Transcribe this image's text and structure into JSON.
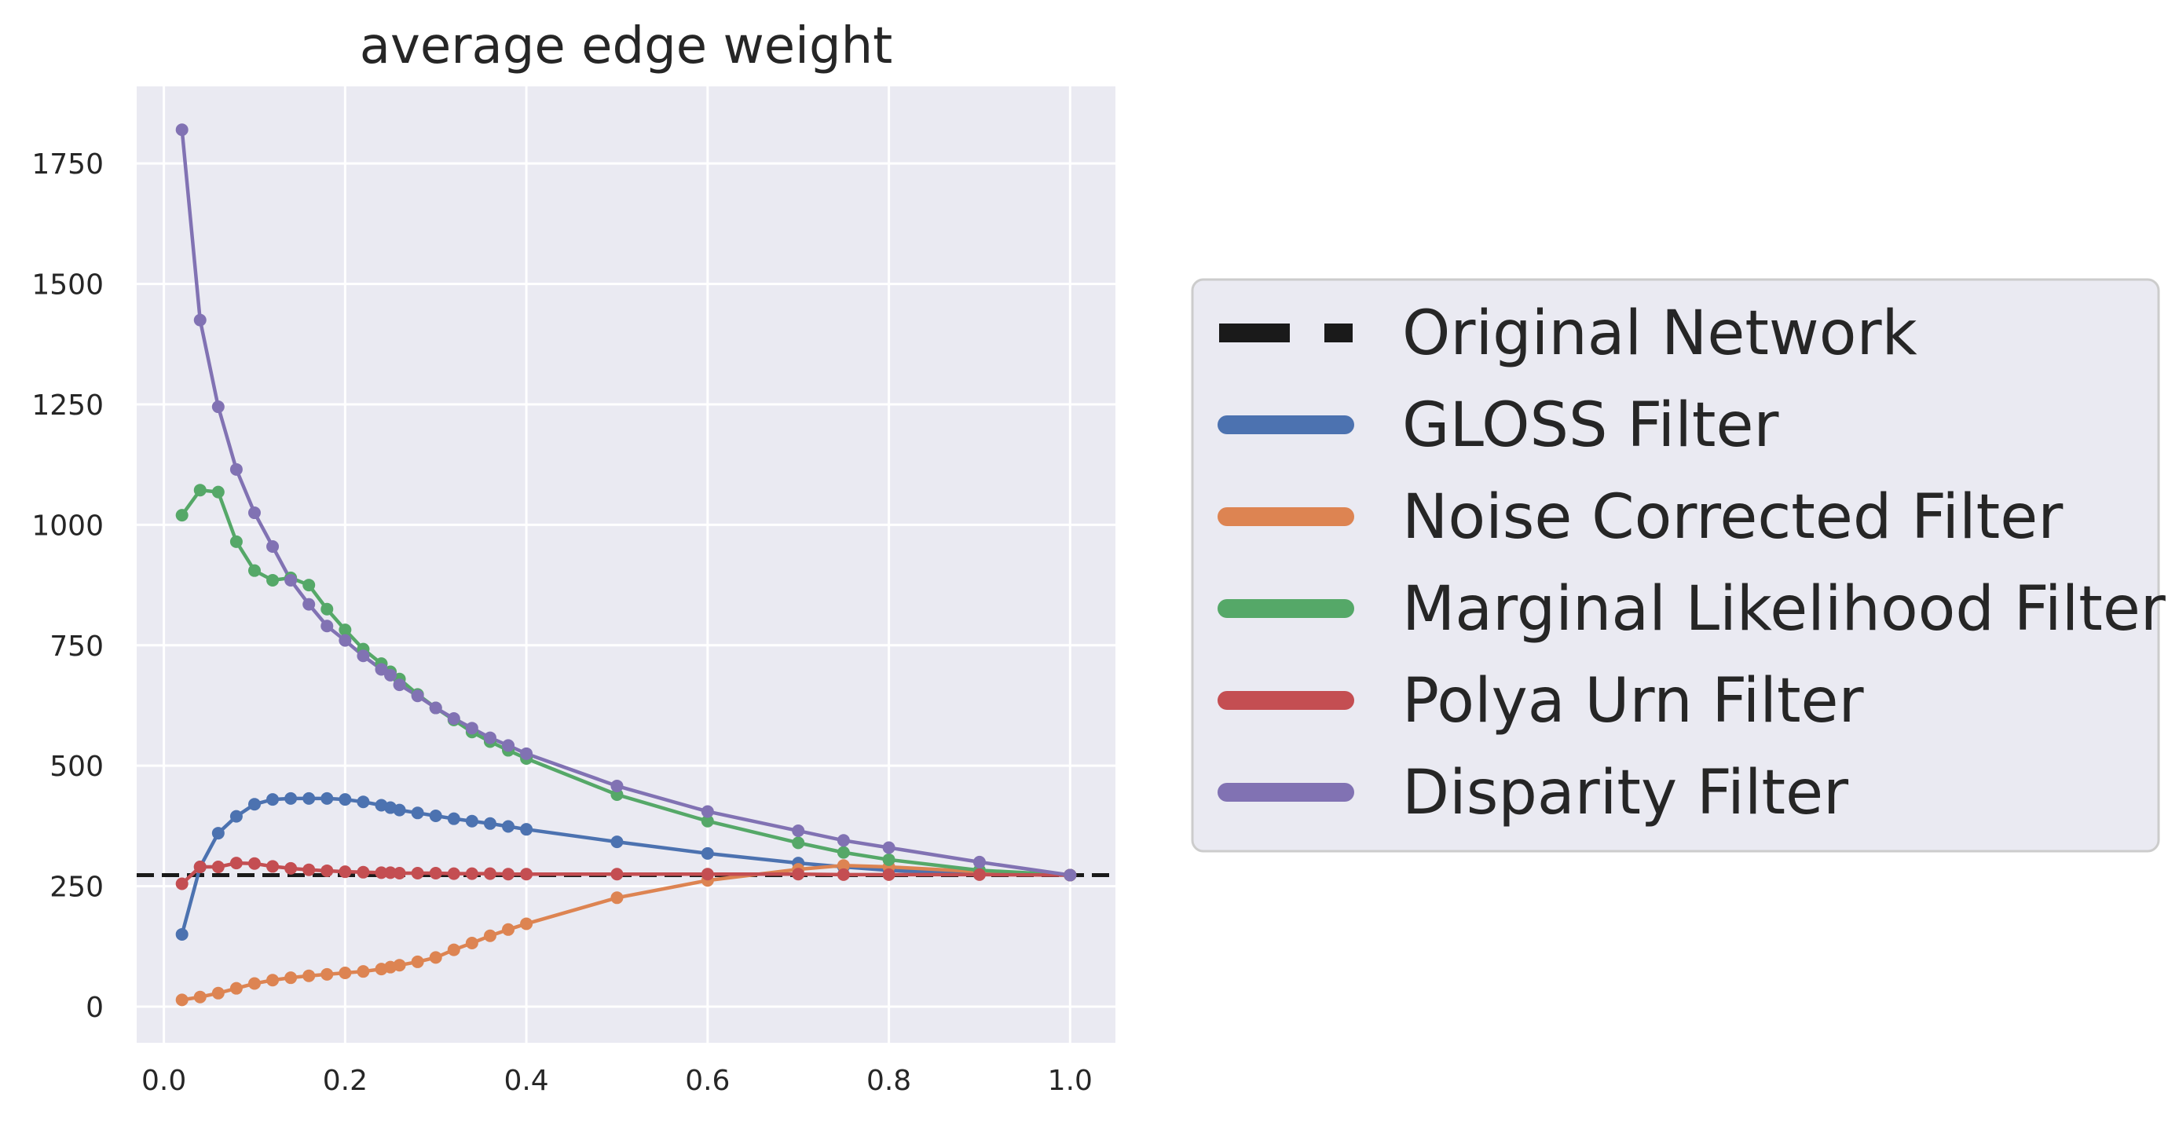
{
  "chart_data": {
    "type": "line",
    "title": "average edge weight",
    "xlabel": "",
    "ylabel": "",
    "xlim": [
      -0.03,
      1.05
    ],
    "ylim": [
      -75,
      1910
    ],
    "xticks": [
      0.0,
      0.2,
      0.4,
      0.6,
      0.8,
      1.0
    ],
    "xtick_labels": [
      "0.0",
      "0.2",
      "0.4",
      "0.6",
      "0.8",
      "1.0"
    ],
    "yticks": [
      0,
      250,
      500,
      750,
      1000,
      1250,
      1500,
      1750
    ],
    "ytick_labels": [
      "0",
      "250",
      "500",
      "750",
      "1000",
      "1250",
      "1500",
      "1750"
    ],
    "grid": true,
    "legend_position": "right",
    "reference_line": {
      "name": "Original Network",
      "y": 273,
      "color": "#1a1a1a",
      "style": "dashed"
    },
    "x": [
      0.02,
      0.04,
      0.06,
      0.08,
      0.1,
      0.12,
      0.14,
      0.16,
      0.18,
      0.2,
      0.22,
      0.24,
      0.25,
      0.26,
      0.28,
      0.3,
      0.32,
      0.34,
      0.36,
      0.38,
      0.4,
      0.5,
      0.6,
      0.7,
      0.75,
      0.8,
      0.9,
      1.0
    ],
    "series": [
      {
        "name": "GLOSS Filter",
        "color": "#4c72b0",
        "values": [
          150,
          290,
          360,
          395,
          420,
          430,
          432,
          432,
          432,
          430,
          425,
          418,
          413,
          408,
          402,
          396,
          390,
          385,
          380,
          374,
          368,
          342,
          318,
          298,
          290,
          283,
          275,
          273
        ]
      },
      {
        "name": "Noise Corrected Filter",
        "color": "#dd8452",
        "values": [
          14,
          20,
          28,
          38,
          48,
          55,
          60,
          64,
          67,
          70,
          73,
          78,
          82,
          86,
          93,
          102,
          118,
          132,
          147,
          160,
          172,
          226,
          262,
          285,
          293,
          290,
          280,
          273
        ]
      },
      {
        "name": "Marginal Likelihood Filter",
        "color": "#55a868",
        "values": [
          1020,
          1072,
          1068,
          965,
          905,
          885,
          890,
          875,
          825,
          782,
          742,
          712,
          695,
          680,
          648,
          620,
          595,
          570,
          550,
          532,
          515,
          440,
          385,
          340,
          320,
          305,
          283,
          273
        ]
      },
      {
        "name": "Polya Urn Filter",
        "color": "#c44e52",
        "values": [
          255,
          290,
          290,
          298,
          297,
          291,
          287,
          284,
          282,
          280,
          279,
          278,
          278,
          277,
          277,
          277,
          276,
          276,
          276,
          275,
          275,
          275,
          275,
          275,
          274,
          274,
          274,
          273
        ]
      },
      {
        "name": "Disparity Filter",
        "color": "#8172b3",
        "values": [
          1820,
          1425,
          1245,
          1115,
          1025,
          955,
          885,
          835,
          790,
          760,
          728,
          700,
          688,
          668,
          645,
          620,
          598,
          578,
          558,
          542,
          525,
          458,
          405,
          365,
          345,
          330,
          300,
          273
        ]
      }
    ],
    "legend_entries": [
      "Original Network",
      "GLOSS Filter",
      "Noise Corrected Filter",
      "Marginal Likelihood Filter",
      "Polya Urn Filter",
      "Disparity Filter"
    ]
  }
}
